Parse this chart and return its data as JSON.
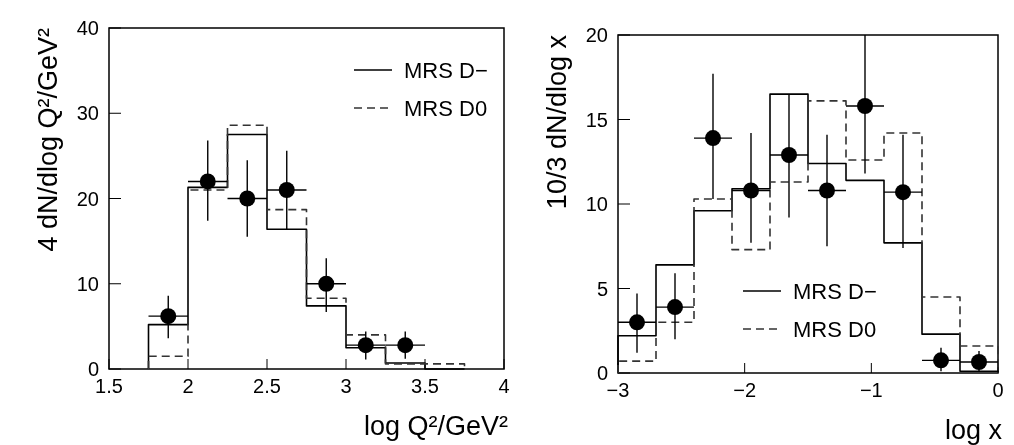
{
  "chart_data": [
    {
      "type": "histogram",
      "xlabel": "log Q²/GeV²",
      "ylabel": "4 dN/dlog Q²/GeV²",
      "xlim": [
        1.5,
        4
      ],
      "ylim": [
        0,
        40
      ],
      "xticks": [
        1.5,
        2,
        2.5,
        3,
        3.5,
        4
      ],
      "yticks": [
        0,
        10,
        20,
        30,
        40
      ],
      "legend": "top right",
      "bins": [
        1.75,
        2,
        2.25,
        2.5,
        2.75,
        3,
        3.25,
        3.5,
        3.75
      ],
      "series": [
        {
          "name": "MRS D−",
          "color": "#000000",
          "line_style": "solid",
          "values": [
            5.2,
            21.3,
            27.5,
            16.4,
            7.4,
            2.5,
            0.7,
            0
          ]
        },
        {
          "name": "MRS D0",
          "color": "#333333",
          "line_style": "dashed",
          "values": [
            1.5,
            21,
            28.6,
            18.7,
            8.3,
            4,
            0.6,
            0.6
          ]
        },
        {
          "type": "scatter",
          "color": "#000000",
          "marker": "circle",
          "x": [
            1.875,
            2.125,
            2.375,
            2.625,
            2.875,
            3.125,
            3.375
          ],
          "values": [
            6.2,
            22,
            20,
            21,
            10,
            2.8,
            2.8
          ],
          "errors": [
            [
              3.6,
              8.6
            ],
            [
              17.4,
              26.8
            ],
            [
              15.5,
              24.5
            ],
            [
              16.4,
              25.6
            ],
            [
              6.7,
              13
            ],
            [
              1.1,
              4.4
            ],
            [
              1.2,
              4.4
            ]
          ],
          "xerrors": [
            0.125,
            0.125,
            0.125,
            0.125,
            0.125,
            0.125,
            0.125
          ]
        }
      ]
    },
    {
      "type": "histogram",
      "xlabel": "log x",
      "ylabel": "10/3 dN/dlog x",
      "xlim": [
        -3,
        0
      ],
      "ylim": [
        0,
        20
      ],
      "xticks": [
        {
          "value": -3,
          "label": "−3"
        },
        {
          "value": -2,
          "label": "−2"
        },
        {
          "value": -1,
          "label": "−1"
        },
        0
      ],
      "yticks": [
        0,
        5,
        10,
        15,
        20
      ],
      "legend": "bottom",
      "bins": [
        -3,
        -2.7,
        -2.4,
        -2.1,
        -1.8,
        -1.5,
        -1.2,
        -0.9,
        -0.6,
        -0.3,
        0
      ],
      "series": [
        {
          "name": "MRS D−",
          "color": "#000000",
          "line_style": "solid",
          "values": [
            2.2,
            6.4,
            9.6,
            10.9,
            16.5,
            12.4,
            11.4,
            7.7,
            2.3,
            0.1
          ]
        },
        {
          "name": "MRS D0",
          "color": "#333333",
          "line_style": "dashed",
          "values": [
            0.7,
            3,
            10.3,
            7.3,
            11.3,
            16.1,
            12.6,
            14.2,
            4.5,
            1.6
          ]
        },
        {
          "type": "scatter",
          "color": "#000000",
          "marker": "circle",
          "x": [
            -2.85,
            -2.55,
            -2.25,
            -1.95,
            -1.65,
            -1.35,
            -1.05,
            -0.75,
            -0.45,
            -0.15
          ],
          "values": [
            3,
            3.9,
            13.9,
            10.8,
            12.9,
            10.8,
            15.8,
            10.7,
            0.75,
            0.65
          ],
          "errors": [
            [
              1.2,
              4.7
            ],
            [
              2,
              5.9
            ],
            [
              10.3,
              17.7
            ],
            [
              7.7,
              14.2
            ],
            [
              9.2,
              16.5
            ],
            [
              7.5,
              14.1
            ],
            [
              11.8,
              20
            ],
            [
              7.4,
              14.1
            ],
            [
              0.1,
              1.5
            ],
            [
              0.1,
              1.3
            ]
          ],
          "xerrors": [
            0.15,
            0.15,
            0.15,
            0.15,
            0.15,
            0.15,
            0.15,
            0.15,
            0.15,
            0.15
          ]
        }
      ]
    }
  ]
}
